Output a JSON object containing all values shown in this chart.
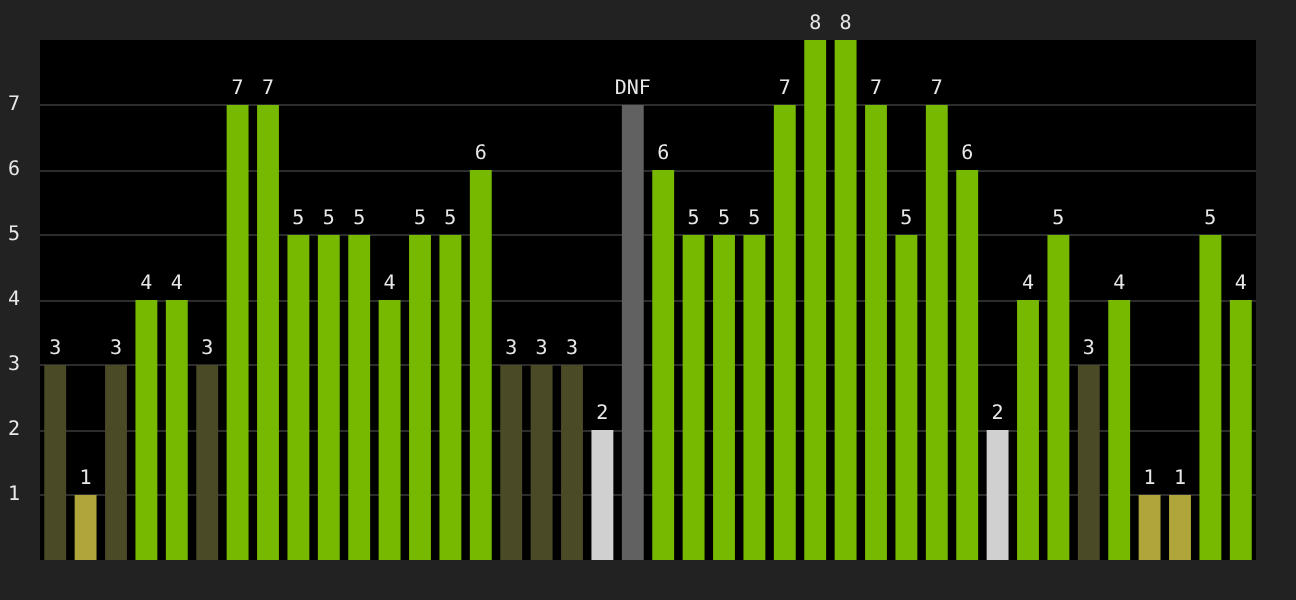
{
  "chart_data": {
    "type": "bar",
    "categories": [
      null,
      null,
      null,
      null,
      null,
      null,
      null,
      null,
      null,
      null,
      null,
      null,
      null,
      null,
      null,
      null,
      null,
      null,
      null,
      null,
      null,
      null,
      null,
      null,
      null,
      null,
      null,
      null,
      null,
      null,
      null,
      null,
      null,
      null,
      null,
      null,
      null,
      null,
      null,
      null
    ],
    "values": [
      3,
      1,
      3,
      4,
      4,
      3,
      7,
      7,
      5,
      5,
      5,
      4,
      5,
      5,
      6,
      3,
      3,
      3,
      2,
      7,
      6,
      5,
      5,
      5,
      7,
      8,
      8,
      7,
      5,
      7,
      6,
      2,
      4,
      5,
      3,
      4,
      1,
      1,
      5,
      4
    ],
    "value_labels": [
      "3",
      "1",
      "3",
      "4",
      "4",
      "3",
      "7",
      "7",
      "5",
      "5",
      "5",
      "4",
      "5",
      "5",
      "6",
      "3",
      "3",
      "3",
      "2",
      "DNF",
      "6",
      "5",
      "5",
      "5",
      "7",
      "8",
      "8",
      "7",
      "5",
      "7",
      "6",
      "2",
      "4",
      "5",
      "3",
      "4",
      "1",
      "1",
      "5",
      "4"
    ],
    "colors": [
      "#4b4a26",
      "#b0a53a",
      "#4b4a26",
      "#76b900",
      "#76b900",
      "#4b4a26",
      "#76b900",
      "#76b900",
      "#76b900",
      "#76b900",
      "#76b900",
      "#76b900",
      "#76b900",
      "#76b900",
      "#76b900",
      "#4b4a26",
      "#4b4a26",
      "#4b4a26",
      "#d0d0d0",
      "#616161",
      "#76b900",
      "#76b900",
      "#76b900",
      "#76b900",
      "#76b900",
      "#76b900",
      "#76b900",
      "#76b900",
      "#76b900",
      "#76b900",
      "#76b900",
      "#d0d0d0",
      "#76b900",
      "#76b900",
      "#4b4a26",
      "#76b900",
      "#b0a53a",
      "#b0a53a",
      "#76b900",
      "#76b900"
    ],
    "ylim": [
      0,
      8
    ],
    "yticks": [
      1,
      2,
      3,
      4,
      5,
      6,
      7
    ],
    "grid": "y"
  }
}
